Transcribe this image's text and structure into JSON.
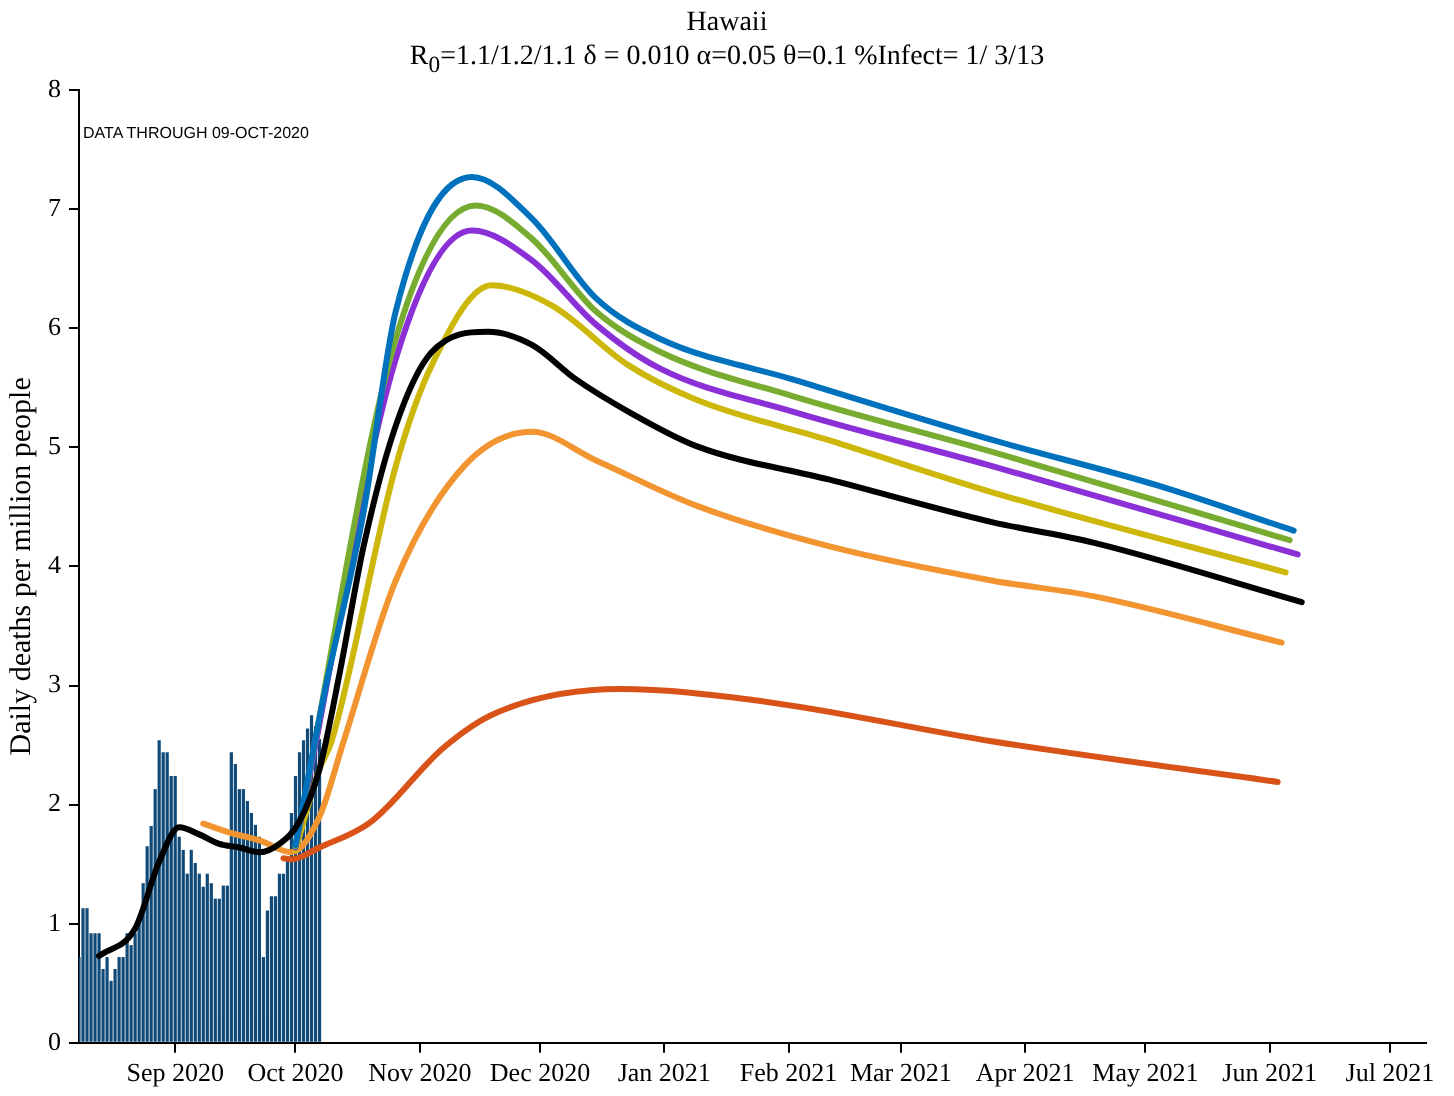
{
  "chart_data": {
    "type": "line",
    "title": "Hawaii",
    "subtitle": "R$_{0}$=1.1/1.2/1.1  δ = 0.010  α=0.05  θ=0.1  %Infect= 1/ 3/13",
    "ylabel": "Daily deaths per million people",
    "annotations": [
      "DATA THROUGH 09-OCT-2020"
    ],
    "xlim": [
      "2020-08-08",
      "2021-07-10"
    ],
    "xticks": [
      {
        "value": "2020-09-01",
        "label": "Sep 2020"
      },
      {
        "value": "2020-10-01",
        "label": "Oct 2020"
      },
      {
        "value": "2020-11-01",
        "label": "Nov 2020"
      },
      {
        "value": "2020-12-01",
        "label": "Dec 2020"
      },
      {
        "value": "2021-01-01",
        "label": "Jan 2021"
      },
      {
        "value": "2021-02-01",
        "label": "Feb 2021"
      },
      {
        "value": "2021-03-01",
        "label": "Mar 2021"
      },
      {
        "value": "2021-04-01",
        "label": "Apr 2021"
      },
      {
        "value": "2021-05-01",
        "label": "May 2021"
      },
      {
        "value": "2021-06-01",
        "label": "Jun 2021"
      },
      {
        "value": "2021-07-01",
        "label": "Jul 2021"
      }
    ],
    "ylim": [
      0,
      8
    ],
    "yticks": [
      0,
      1,
      2,
      3,
      4,
      5,
      6,
      7,
      8
    ],
    "grid": false,
    "legend": false,
    "marker": "none",
    "line_style": "solid",
    "series": [
      {
        "type": "bar",
        "color": "#0f4a78",
        "x": [
          "2020-08-08",
          "2020-08-09",
          "2020-08-10",
          "2020-08-11",
          "2020-08-12",
          "2020-08-13",
          "2020-08-14",
          "2020-08-15",
          "2020-08-16",
          "2020-08-17",
          "2020-08-18",
          "2020-08-19",
          "2020-08-20",
          "2020-08-21",
          "2020-08-22",
          "2020-08-23",
          "2020-08-24",
          "2020-08-25",
          "2020-08-26",
          "2020-08-27",
          "2020-08-28",
          "2020-08-29",
          "2020-08-30",
          "2020-08-31",
          "2020-09-01",
          "2020-09-02",
          "2020-09-03",
          "2020-09-04",
          "2020-09-05",
          "2020-09-06",
          "2020-09-07",
          "2020-09-08",
          "2020-09-09",
          "2020-09-10",
          "2020-09-11",
          "2020-09-12",
          "2020-09-13",
          "2020-09-14",
          "2020-09-15",
          "2020-09-16",
          "2020-09-17",
          "2020-09-18",
          "2020-09-19",
          "2020-09-20",
          "2020-09-21",
          "2020-09-22",
          "2020-09-23",
          "2020-09-24",
          "2020-09-25",
          "2020-09-26",
          "2020-09-27",
          "2020-09-28",
          "2020-09-29",
          "2020-09-30",
          "2020-10-01",
          "2020-10-02",
          "2020-10-03",
          "2020-10-04",
          "2020-10-05",
          "2020-10-06",
          "2020-10-07"
        ],
        "values": [
          0.72,
          1.13,
          1.13,
          0.92,
          0.92,
          0.92,
          0.62,
          0.72,
          0.52,
          0.62,
          0.72,
          0.72,
          0.92,
          0.82,
          0.92,
          1.03,
          1.34,
          1.65,
          1.82,
          2.13,
          2.54,
          2.44,
          2.44,
          2.24,
          2.24,
          1.73,
          1.62,
          1.42,
          1.62,
          1.51,
          1.42,
          1.31,
          1.42,
          1.34,
          1.21,
          1.21,
          1.32,
          1.32,
          2.44,
          2.34,
          2.13,
          2.13,
          2.03,
          1.93,
          1.83,
          1.73,
          0.72,
          1.11,
          1.23,
          1.23,
          1.42,
          1.42,
          1.53,
          1.93,
          2.24,
          2.44,
          2.54,
          2.64,
          2.75,
          2.66,
          2.55
        ]
      },
      {
        "color": "#d95319",
        "x": [
          "2020-09-28",
          "2020-09-30",
          "2020-10-07",
          "2020-10-20",
          "2020-11-07",
          "2020-11-20",
          "2020-12-21",
          "2021-01-25",
          "2021-03-24",
          "2021-06-03"
        ],
        "values": [
          1.55,
          1.54,
          1.64,
          1.86,
          2.48,
          2.77,
          2.97,
          2.87,
          2.53,
          2.19
        ]
      },
      {
        "color": "#f29430",
        "x": [
          "2020-09-08",
          "2020-09-15",
          "2020-09-22",
          "2020-09-30",
          "2020-10-07",
          "2020-10-13",
          "2020-10-26",
          "2020-11-12",
          "2020-11-29",
          "2020-12-15",
          "2021-01-09",
          "2021-02-11",
          "2021-03-24",
          "2021-04-18",
          "2021-06-04"
        ],
        "values": [
          1.84,
          1.76,
          1.7,
          1.6,
          1.9,
          2.53,
          3.88,
          4.84,
          5.13,
          4.89,
          4.51,
          4.17,
          3.88,
          3.75,
          3.36
        ]
      },
      {
        "color": "#cdb70a",
        "x": [
          "2020-10-01",
          "2020-10-07",
          "2020-10-10",
          "2020-10-26",
          "2020-11-04",
          "2020-11-19",
          "2020-12-04",
          "2020-12-23",
          "2021-01-09",
          "2021-02-11",
          "2021-03-24",
          "2021-06-05"
        ],
        "values": [
          1.62,
          2.3,
          2.53,
          4.84,
          5.69,
          6.36,
          6.19,
          5.69,
          5.4,
          5.06,
          4.62,
          3.95
        ]
      },
      {
        "color": "#8b2fd6",
        "x": [
          "2020-10-01",
          "2020-10-26",
          "2020-11-14",
          "2020-11-29",
          "2020-12-15",
          "2020-12-31",
          "2021-02-02",
          "2021-03-24",
          "2021-06-08"
        ],
        "values": [
          1.64,
          5.74,
          6.82,
          6.57,
          6.03,
          5.66,
          5.3,
          4.84,
          4.1
        ]
      },
      {
        "color": "#77ac30",
        "x": [
          "2020-10-01",
          "2020-10-26",
          "2020-11-15",
          "2020-11-29",
          "2020-12-15",
          "2020-12-31",
          "2021-02-02",
          "2021-03-24",
          "2021-06-06"
        ],
        "values": [
          1.65,
          5.91,
          7.03,
          6.75,
          6.14,
          5.8,
          5.43,
          4.96,
          4.22
        ]
      },
      {
        "color": "#0072bd",
        "x": [
          "2020-10-01",
          "2020-10-08",
          "2020-10-18",
          "2020-10-26",
          "2020-11-14",
          "2020-11-29",
          "2020-12-15",
          "2020-12-31",
          "2021-02-02",
          "2021-03-24",
          "2021-05-04",
          "2021-06-07"
        ],
        "values": [
          1.66,
          2.9,
          4.46,
          6.14,
          7.27,
          6.92,
          6.25,
          5.91,
          5.57,
          5.06,
          4.68,
          4.3
        ]
      },
      {
        "color": "#000000",
        "x": [
          "2020-08-13",
          "2020-08-22",
          "2020-08-28",
          "2020-09-02",
          "2020-09-07",
          "2020-09-12",
          "2020-09-17",
          "2020-09-22",
          "2020-09-27",
          "2020-10-02",
          "2020-10-07",
          "2020-10-12",
          "2020-10-18",
          "2020-10-26",
          "2020-11-04",
          "2020-11-18",
          "2020-11-29",
          "2020-12-10",
          "2020-12-23",
          "2021-01-09",
          "2021-02-11",
          "2021-03-24",
          "2021-04-18",
          "2021-06-09"
        ],
        "values": [
          0.73,
          0.96,
          1.52,
          1.81,
          1.75,
          1.67,
          1.64,
          1.6,
          1.67,
          1.86,
          2.3,
          3.1,
          4.17,
          5.18,
          5.8,
          5.97,
          5.86,
          5.57,
          5.3,
          5.01,
          4.73,
          4.37,
          4.2,
          3.7
        ]
      }
    ]
  }
}
